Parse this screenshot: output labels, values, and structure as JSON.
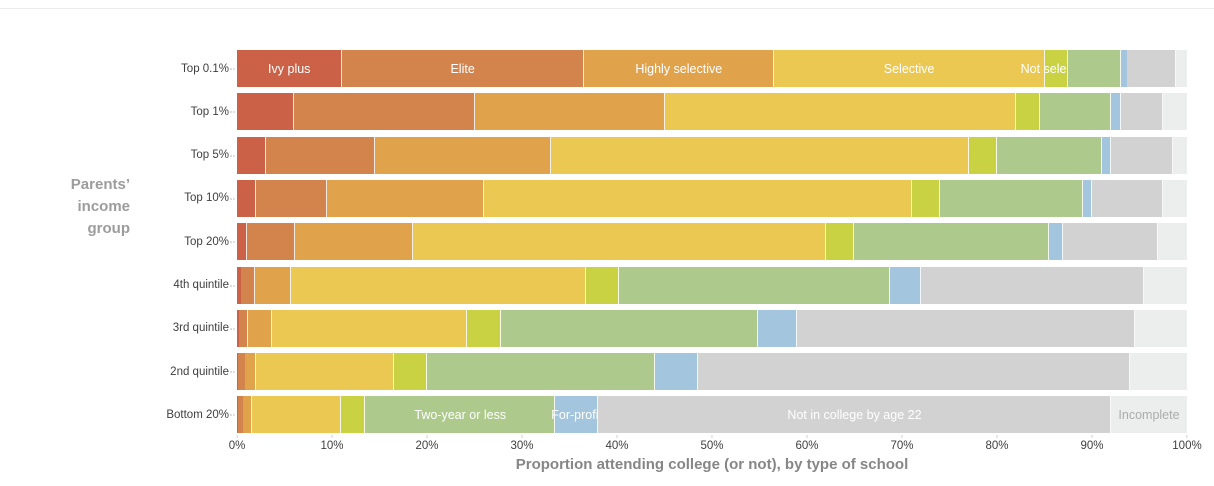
{
  "page": {
    "background": "#ffffff",
    "top_rule_color": "#ececec"
  },
  "chart_data": {
    "type": "bar",
    "stacked": true,
    "orientation": "horizontal",
    "title": "",
    "xlabel": "Proportion attending college (or not), by type of school",
    "ylabel": "Parents' income group",
    "ylabel_lines": [
      "Parents’",
      "income",
      "group"
    ],
    "xlim": [
      0,
      100
    ],
    "grid": false,
    "legend": "labels-inside-bars",
    "x_tick_labels": [
      "0%",
      "10%",
      "20%",
      "30%",
      "40%",
      "50%",
      "60%",
      "70%",
      "80%",
      "90%",
      "100%"
    ],
    "x_tick_values": [
      0,
      10,
      20,
      30,
      40,
      50,
      60,
      70,
      80,
      90,
      100
    ],
    "categories": [
      "Top 0.1%",
      "Top 1%",
      "Top 5%",
      "Top 10%",
      "Top 20%",
      "4th quintile",
      "3rd quintile",
      "2nd quintile",
      "Bottom 20%"
    ],
    "series": [
      {
        "name": "Ivy plus",
        "color": "#cb6147",
        "values": [
          11,
          6,
          3,
          2,
          1.1,
          0.4,
          0.25,
          0.15,
          0.1
        ]
      },
      {
        "name": "Elite",
        "color": "#d3834c",
        "values": [
          25.5,
          19,
          11.5,
          7.5,
          5,
          1.5,
          0.95,
          0.65,
          0.5
        ]
      },
      {
        "name": "Highly selective",
        "color": "#e0a34c",
        "values": [
          20,
          20,
          18.5,
          16.5,
          12.4,
          3.8,
          2.5,
          1.2,
          1
        ]
      },
      {
        "name": "Selective",
        "color": "#ebc851",
        "values": [
          28.5,
          37,
          44,
          45,
          43.5,
          31,
          20.5,
          14.5,
          9.4
        ]
      },
      {
        "name": "Not selective",
        "color": "#c9d243",
        "values": [
          2.5,
          2.5,
          3,
          3,
          3,
          3.5,
          3.6,
          3.5,
          2.5
        ]
      },
      {
        "name": "Two-year or less",
        "color": "#adca8c",
        "values": [
          5.5,
          7.5,
          11,
          15,
          20.5,
          28.5,
          27,
          24,
          20
        ]
      },
      {
        "name": "For-profit",
        "color": "#a3c6de",
        "values": [
          0.7,
          1,
          1,
          1,
          1.5,
          3.3,
          4.2,
          4.5,
          4.5
        ]
      },
      {
        "name": "Not in college by age 22",
        "color": "#d2d2d2",
        "values": [
          5.1,
          4.5,
          6.5,
          7.5,
          10,
          23.5,
          35.5,
          45.5,
          54
        ]
      },
      {
        "name": "Incomplete",
        "color": "#eceeed",
        "values": [
          1.2,
          2.5,
          1.5,
          2.5,
          3,
          4.5,
          5.5,
          6,
          8
        ]
      }
    ],
    "segment_labels": [
      {
        "row": 0,
        "series": 0,
        "text": "Ivy plus",
        "color": "#ffffff"
      },
      {
        "row": 0,
        "series": 1,
        "text": "Elite",
        "color": "#ffffff"
      },
      {
        "row": 0,
        "series": 2,
        "text": "Highly selective",
        "color": "#ffffff"
      },
      {
        "row": 0,
        "series": 3,
        "text": "Selective",
        "color": "#ffffff"
      },
      {
        "row": 0,
        "series": 4,
        "text": "Not selective",
        "color": "#ffffff"
      },
      {
        "row": 8,
        "series": 5,
        "text": "Two-year or less",
        "color": "#ffffff"
      },
      {
        "row": 8,
        "series": 6,
        "text": "For-profit",
        "color": "#ffffff"
      },
      {
        "row": 8,
        "series": 7,
        "text": "Not in college by age 22",
        "color": "#ffffff"
      },
      {
        "row": 8,
        "series": 8,
        "text": "Incomplete",
        "color": "#a9adad"
      }
    ]
  }
}
